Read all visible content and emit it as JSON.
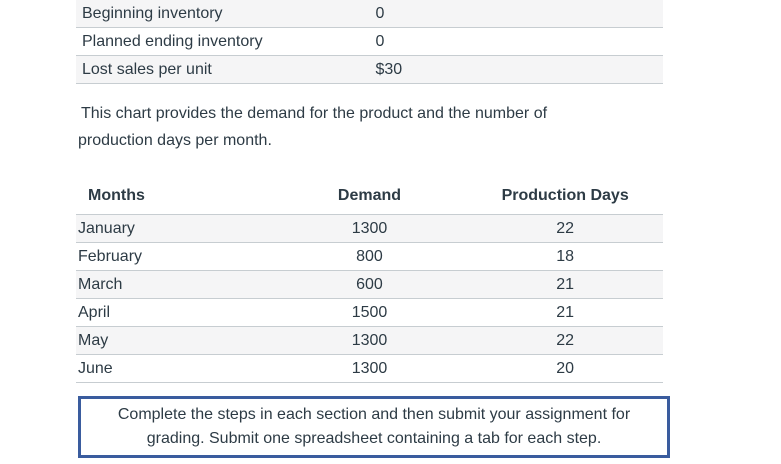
{
  "inventory_table": {
    "rows": [
      {
        "label": "Beginning inventory",
        "value": "0"
      },
      {
        "label": "Planned ending inventory",
        "value": "0"
      },
      {
        "label": "Lost sales per unit",
        "value": "$30"
      }
    ]
  },
  "intro_paragraph": "This chart provides the demand for the product and the number of production days per month.",
  "schedule_table": {
    "headers": {
      "months": "Months",
      "demand": "Demand",
      "production_days": "Production Days"
    },
    "rows": [
      {
        "month": "January",
        "demand": "1300",
        "production_days": "22"
      },
      {
        "month": "February",
        "demand": "800",
        "production_days": "18"
      },
      {
        "month": "March",
        "demand": "600",
        "production_days": "21"
      },
      {
        "month": "April",
        "demand": "1500",
        "production_days": "21"
      },
      {
        "month": "May",
        "demand": "1300",
        "production_days": "22"
      },
      {
        "month": "June",
        "demand": "1300",
        "production_days": "20"
      }
    ]
  },
  "notice": "Complete the steps in each section and then submit your assignment for grading. Submit one spreadsheet containing a tab for each step.",
  "colors": {
    "text": "#2d3b45",
    "row_stripe": "#f5f5f6",
    "table_border": "#c7cdd1",
    "notice_border": "#3a5c9e",
    "background": "#ffffff"
  }
}
